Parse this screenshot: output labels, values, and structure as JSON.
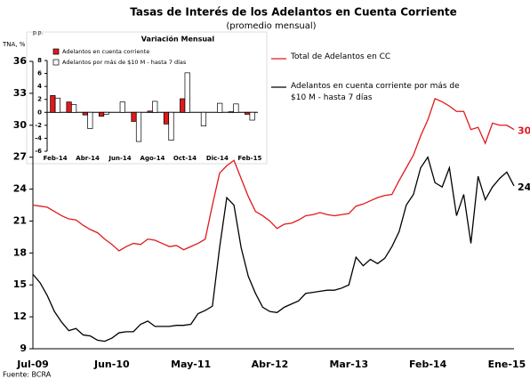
{
  "chart_data": [
    {
      "type": "line",
      "title": "Tasas de Interés de los Adelantos en Cuenta Corriente",
      "subtitle": "(promedio mensual)",
      "y_label": "TNA, %",
      "source": "Fuente: BCRA",
      "categories": [
        "Jul-09",
        null,
        null,
        null,
        null,
        null,
        null,
        null,
        null,
        null,
        null,
        "Jun-10",
        null,
        null,
        null,
        null,
        null,
        null,
        null,
        null,
        null,
        null,
        "May-11",
        null,
        null,
        null,
        null,
        null,
        null,
        null,
        null,
        null,
        null,
        "Abr-12",
        null,
        null,
        null,
        null,
        null,
        null,
        null,
        null,
        null,
        null,
        "Mar-13",
        null,
        null,
        null,
        null,
        null,
        null,
        null,
        null,
        null,
        null,
        "Feb-14",
        null,
        null,
        null,
        null,
        null,
        null,
        null,
        null,
        null,
        null,
        "Ene-15",
        null
      ],
      "series": [
        {
          "name": "Total de Adelantos en CC",
          "color": "#e0191b",
          "values": [
            22.5,
            22.4,
            22.3,
            21.9,
            21.5,
            21.2,
            21.1,
            20.6,
            20.2,
            19.9,
            19.3,
            18.8,
            18.2,
            18.6,
            18.9,
            18.8,
            19.3,
            19.2,
            18.9,
            18.6,
            18.7,
            18.3,
            18.6,
            18.9,
            19.3,
            22.5,
            25.5,
            26.2,
            26.7,
            25.0,
            23.3,
            21.9,
            21.5,
            21.0,
            20.3,
            20.7,
            20.8,
            21.1,
            21.5,
            21.6,
            21.8,
            21.6,
            21.5,
            21.6,
            21.7,
            22.4,
            22.6,
            22.9,
            23.2,
            23.4,
            23.5,
            24.8,
            26.0,
            27.2,
            29.0,
            30.5,
            32.5,
            32.2,
            31.8,
            31.3,
            31.3,
            29.6,
            29.8,
            28.3,
            30.2,
            30.0,
            30.0,
            29.6
          ],
          "end_label": "30,"
        },
        {
          "name": "Adelantos en cuenta corriente por más de $10 M - hasta 7 días",
          "color": "#000000",
          "values": [
            16.0,
            15.2,
            14.0,
            12.5,
            11.5,
            10.7,
            10.9,
            10.3,
            10.2,
            9.8,
            9.7,
            10.0,
            10.5,
            10.6,
            10.6,
            11.3,
            11.6,
            11.1,
            11.1,
            11.1,
            11.2,
            11.2,
            11.3,
            12.3,
            12.6,
            13.0,
            18.5,
            23.2,
            22.5,
            18.5,
            15.8,
            14.2,
            12.9,
            12.5,
            12.4,
            12.9,
            13.2,
            13.5,
            14.2,
            14.3,
            14.4,
            14.5,
            14.5,
            14.7,
            15.0,
            17.6,
            16.8,
            17.4,
            17.0,
            17.5,
            18.6,
            20.0,
            22.5,
            23.5,
            26.0,
            27.0,
            24.6,
            24.2,
            26.0,
            21.5,
            23.5,
            18.9,
            25.2,
            23.0,
            24.2,
            25.0,
            25.6,
            24.3
          ],
          "end_label": "24,"
        }
      ],
      "ylim": [
        9,
        36
      ],
      "yticks": [
        9,
        12,
        15,
        18,
        21,
        24,
        27,
        30,
        33,
        36
      ]
    },
    {
      "type": "bar",
      "title": "Variación Mensual",
      "y_label": "p.p.",
      "categories": [
        "Feb-14",
        null,
        "Abr-14",
        null,
        "Jun-14",
        null,
        "Ago-14",
        null,
        "Oct-14",
        null,
        "Dic-14",
        null,
        "Feb-15"
      ],
      "series": [
        {
          "name": "Adelantos en cuenta corriente",
          "color": "#e0191b",
          "values": [
            2.6,
            1.6,
            -0.4,
            -0.6,
            0,
            -1.4,
            0.2,
            -1.8,
            2.1,
            0,
            0,
            0.1,
            -0.3
          ]
        },
        {
          "name": "Adelantos por más de $10 M - hasta 7 días",
          "color": "#ffffff",
          "values": [
            2.2,
            1.2,
            -2.5,
            -0.3,
            1.6,
            -4.5,
            1.7,
            -4.3,
            6.1,
            -2.1,
            1.4,
            1.3,
            -1.2
          ]
        }
      ],
      "ylim": [
        -6,
        8
      ],
      "yticks": [
        -6,
        -4,
        -2,
        0,
        2,
        4,
        6,
        8
      ]
    }
  ]
}
